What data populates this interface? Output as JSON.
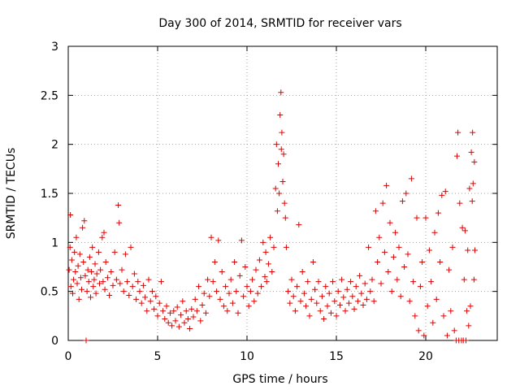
{
  "chart_data": {
    "type": "scatter",
    "title": "Day 300 of 2014, SRMTID for receiver vars",
    "xlabel": "GPS time / hours",
    "ylabel": "SRMTID / TECUs",
    "xlim": [
      0,
      24
    ],
    "ylim": [
      0,
      3
    ],
    "xticks": [
      0,
      5,
      10,
      15,
      20
    ],
    "yticks": [
      0,
      0.5,
      1,
      1.5,
      2,
      2.5,
      3
    ],
    "xtick_labels": [
      "0",
      "5",
      "10",
      "15",
      "20"
    ],
    "ytick_labels": [
      "0",
      "0.5",
      "1",
      "1.5",
      "2",
      "2.5",
      "3"
    ],
    "grid": true,
    "marker": "+",
    "color": "#e00000",
    "series": [
      {
        "name": "SRMTID",
        "points": [
          [
            0.05,
            0.72
          ],
          [
            0.1,
            0.95
          ],
          [
            0.12,
            1.28
          ],
          [
            0.15,
            0.55
          ],
          [
            0.2,
            0.82
          ],
          [
            0.25,
            0.48
          ],
          [
            0.3,
            0.62
          ],
          [
            0.35,
            0.9
          ],
          [
            0.4,
            0.7
          ],
          [
            0.45,
            1.05
          ],
          [
            0.5,
            0.58
          ],
          [
            0.55,
            0.76
          ],
          [
            0.6,
            0.42
          ],
          [
            0.65,
            0.88
          ],
          [
            0.7,
            0.64
          ],
          [
            0.75,
            0.52
          ],
          [
            0.8,
            1.15
          ],
          [
            0.85,
            0.8
          ],
          [
            0.9,
            1.22
          ],
          [
            0.95,
            0.66
          ],
          [
            1.0,
            0.0
          ],
          [
            1.05,
            0.5
          ],
          [
            1.1,
            0.72
          ],
          [
            1.15,
            0.6
          ],
          [
            1.2,
            0.85
          ],
          [
            1.25,
            0.44
          ],
          [
            1.3,
            0.7
          ],
          [
            1.35,
            0.95
          ],
          [
            1.4,
            0.55
          ],
          [
            1.45,
            0.62
          ],
          [
            1.5,
            0.78
          ],
          [
            1.55,
            0.48
          ],
          [
            1.6,
            0.68
          ],
          [
            1.7,
            0.9
          ],
          [
            1.75,
            0.58
          ],
          [
            1.8,
            0.72
          ],
          [
            1.9,
            1.05
          ],
          [
            1.95,
            0.6
          ],
          [
            2.0,
            1.1
          ],
          [
            2.05,
            0.52
          ],
          [
            2.1,
            0.8
          ],
          [
            2.2,
            0.64
          ],
          [
            2.3,
            0.46
          ],
          [
            2.4,
            0.7
          ],
          [
            2.5,
            0.56
          ],
          [
            2.6,
            0.9
          ],
          [
            2.7,
            0.62
          ],
          [
            2.8,
            1.38
          ],
          [
            2.85,
            1.2
          ],
          [
            2.9,
            0.58
          ],
          [
            3.0,
            0.72
          ],
          [
            3.1,
            0.5
          ],
          [
            3.2,
            0.88
          ],
          [
            3.3,
            0.6
          ],
          [
            3.4,
            0.46
          ],
          [
            3.5,
            0.95
          ],
          [
            3.6,
            0.55
          ],
          [
            3.7,
            0.68
          ],
          [
            3.8,
            0.42
          ],
          [
            3.9,
            0.6
          ],
          [
            4.0,
            0.5
          ],
          [
            4.1,
            0.38
          ],
          [
            4.2,
            0.56
          ],
          [
            4.3,
            0.44
          ],
          [
            4.4,
            0.3
          ],
          [
            4.5,
            0.62
          ],
          [
            4.6,
            0.4
          ],
          [
            4.7,
            0.5
          ],
          [
            4.8,
            0.32
          ],
          [
            4.9,
            0.45
          ],
          [
            5.0,
            0.25
          ],
          [
            5.1,
            0.38
          ],
          [
            5.2,
            0.6
          ],
          [
            5.3,
            0.3
          ],
          [
            5.4,
            0.22
          ],
          [
            5.5,
            0.35
          ],
          [
            5.6,
            0.18
          ],
          [
            5.7,
            0.28
          ],
          [
            5.8,
            0.15
          ],
          [
            5.9,
            0.3
          ],
          [
            6.0,
            0.2
          ],
          [
            6.1,
            0.34
          ],
          [
            6.2,
            0.14
          ],
          [
            6.3,
            0.26
          ],
          [
            6.4,
            0.4
          ],
          [
            6.5,
            0.18
          ],
          [
            6.6,
            0.3
          ],
          [
            6.7,
            0.22
          ],
          [
            6.8,
            0.12
          ],
          [
            6.9,
            0.32
          ],
          [
            7.0,
            0.24
          ],
          [
            7.1,
            0.42
          ],
          [
            7.2,
            0.3
          ],
          [
            7.3,
            0.55
          ],
          [
            7.4,
            0.2
          ],
          [
            7.5,
            0.36
          ],
          [
            7.6,
            0.48
          ],
          [
            7.7,
            0.28
          ],
          [
            7.8,
            0.62
          ],
          [
            7.9,
            0.45
          ],
          [
            8.0,
            1.05
          ],
          [
            8.1,
            0.6
          ],
          [
            8.2,
            0.8
          ],
          [
            8.3,
            0.5
          ],
          [
            8.4,
            1.02
          ],
          [
            8.5,
            0.42
          ],
          [
            8.6,
            0.7
          ],
          [
            8.7,
            0.35
          ],
          [
            8.8,
            0.55
          ],
          [
            8.9,
            0.3
          ],
          [
            9.0,
            0.48
          ],
          [
            9.1,
            0.62
          ],
          [
            9.2,
            0.38
          ],
          [
            9.3,
            0.8
          ],
          [
            9.4,
            0.5
          ],
          [
            9.5,
            0.28
          ],
          [
            9.6,
            0.66
          ],
          [
            9.7,
            1.02
          ],
          [
            9.8,
            0.45
          ],
          [
            9.9,
            0.75
          ],
          [
            10.0,
            0.55
          ],
          [
            10.1,
            0.35
          ],
          [
            10.2,
            0.5
          ],
          [
            10.3,
            0.62
          ],
          [
            10.4,
            0.4
          ],
          [
            10.5,
            0.72
          ],
          [
            10.6,
            0.48
          ],
          [
            10.7,
            0.82
          ],
          [
            10.8,
            0.55
          ],
          [
            10.9,
            1.0
          ],
          [
            11.0,
            0.65
          ],
          [
            11.05,
            0.9
          ],
          [
            11.1,
            0.6
          ],
          [
            11.2,
            0.78
          ],
          [
            11.3,
            1.05
          ],
          [
            11.4,
            0.7
          ],
          [
            11.5,
            0.95
          ],
          [
            11.6,
            1.55
          ],
          [
            11.65,
            2.0
          ],
          [
            11.7,
            1.32
          ],
          [
            11.75,
            1.8
          ],
          [
            11.8,
            1.5
          ],
          [
            11.85,
            2.3
          ],
          [
            11.9,
            2.53
          ],
          [
            11.92,
            1.95
          ],
          [
            11.95,
            2.12
          ],
          [
            12.0,
            1.62
          ],
          [
            12.05,
            1.9
          ],
          [
            12.1,
            1.4
          ],
          [
            12.15,
            1.25
          ],
          [
            12.2,
            0.95
          ],
          [
            12.3,
            0.5
          ],
          [
            12.4,
            0.38
          ],
          [
            12.5,
            0.62
          ],
          [
            12.6,
            0.45
          ],
          [
            12.7,
            0.3
          ],
          [
            12.8,
            0.55
          ],
          [
            12.9,
            1.18
          ],
          [
            13.0,
            0.4
          ],
          [
            13.1,
            0.7
          ],
          [
            13.2,
            0.48
          ],
          [
            13.3,
            0.35
          ],
          [
            13.4,
            0.6
          ],
          [
            13.5,
            0.25
          ],
          [
            13.6,
            0.42
          ],
          [
            13.7,
            0.8
          ],
          [
            13.8,
            0.52
          ],
          [
            13.9,
            0.38
          ],
          [
            14.0,
            0.6
          ],
          [
            14.1,
            0.3
          ],
          [
            14.2,
            0.45
          ],
          [
            14.3,
            0.22
          ],
          [
            14.4,
            0.55
          ],
          [
            14.5,
            0.35
          ],
          [
            14.6,
            0.48
          ],
          [
            14.7,
            0.28
          ],
          [
            14.8,
            0.6
          ],
          [
            14.9,
            0.4
          ],
          [
            15.0,
            0.25
          ],
          [
            15.1,
            0.5
          ],
          [
            15.2,
            0.36
          ],
          [
            15.3,
            0.62
          ],
          [
            15.4,
            0.44
          ],
          [
            15.5,
            0.3
          ],
          [
            15.6,
            0.52
          ],
          [
            15.7,
            0.38
          ],
          [
            15.8,
            0.6
          ],
          [
            15.9,
            0.45
          ],
          [
            16.0,
            0.32
          ],
          [
            16.1,
            0.55
          ],
          [
            16.2,
            0.4
          ],
          [
            16.3,
            0.66
          ],
          [
            16.4,
            0.48
          ],
          [
            16.5,
            0.36
          ],
          [
            16.6,
            0.58
          ],
          [
            16.7,
            0.42
          ],
          [
            16.8,
            0.95
          ],
          [
            16.9,
            0.5
          ],
          [
            17.0,
            0.62
          ],
          [
            17.1,
            0.4
          ],
          [
            17.2,
            1.32
          ],
          [
            17.3,
            0.8
          ],
          [
            17.4,
            1.05
          ],
          [
            17.5,
            0.58
          ],
          [
            17.6,
            1.4
          ],
          [
            17.7,
            0.9
          ],
          [
            17.8,
            1.58
          ],
          [
            17.9,
            0.7
          ],
          [
            18.0,
            1.2
          ],
          [
            18.1,
            0.5
          ],
          [
            18.2,
            0.85
          ],
          [
            18.3,
            1.1
          ],
          [
            18.4,
            0.62
          ],
          [
            18.5,
            0.95
          ],
          [
            18.6,
            0.45
          ],
          [
            18.7,
            1.42
          ],
          [
            18.8,
            0.75
          ],
          [
            18.9,
            1.5
          ],
          [
            19.0,
            0.88
          ],
          [
            19.1,
            0.4
          ],
          [
            19.2,
            1.65
          ],
          [
            19.3,
            0.6
          ],
          [
            19.4,
            0.25
          ],
          [
            19.5,
            1.25
          ],
          [
            19.6,
            0.1
          ],
          [
            19.7,
            0.55
          ],
          [
            19.8,
            0.8
          ],
          [
            19.9,
            0.05
          ],
          [
            20.0,
            1.25
          ],
          [
            20.1,
            0.35
          ],
          [
            20.2,
            0.92
          ],
          [
            20.3,
            0.6
          ],
          [
            20.4,
            0.18
          ],
          [
            20.5,
            1.1
          ],
          [
            20.6,
            0.42
          ],
          [
            20.7,
            1.3
          ],
          [
            20.8,
            0.8
          ],
          [
            20.9,
            1.48
          ],
          [
            21.0,
            0.25
          ],
          [
            21.1,
            1.52
          ],
          [
            21.2,
            0.05
          ],
          [
            21.3,
            0.72
          ],
          [
            21.4,
            0.3
          ],
          [
            21.5,
            0.95
          ],
          [
            21.6,
            0.1
          ],
          [
            21.7,
            0.0
          ],
          [
            21.75,
            1.88
          ],
          [
            21.8,
            2.12
          ],
          [
            21.85,
            0.0
          ],
          [
            21.9,
            1.4
          ],
          [
            22.0,
            0.0
          ],
          [
            22.05,
            1.15
          ],
          [
            22.1,
            0.0
          ],
          [
            22.15,
            0.62
          ],
          [
            22.2,
            1.12
          ],
          [
            22.25,
            0.0
          ],
          [
            22.3,
            0.3
          ],
          [
            22.35,
            0.92
          ],
          [
            22.4,
            0.15
          ],
          [
            22.45,
            1.55
          ],
          [
            22.5,
            0.35
          ],
          [
            22.55,
            1.92
          ],
          [
            22.6,
            1.42
          ],
          [
            22.62,
            2.12
          ],
          [
            22.65,
            1.6
          ],
          [
            22.7,
            0.62
          ],
          [
            22.72,
            1.82
          ],
          [
            22.75,
            0.92
          ]
        ]
      }
    ]
  }
}
